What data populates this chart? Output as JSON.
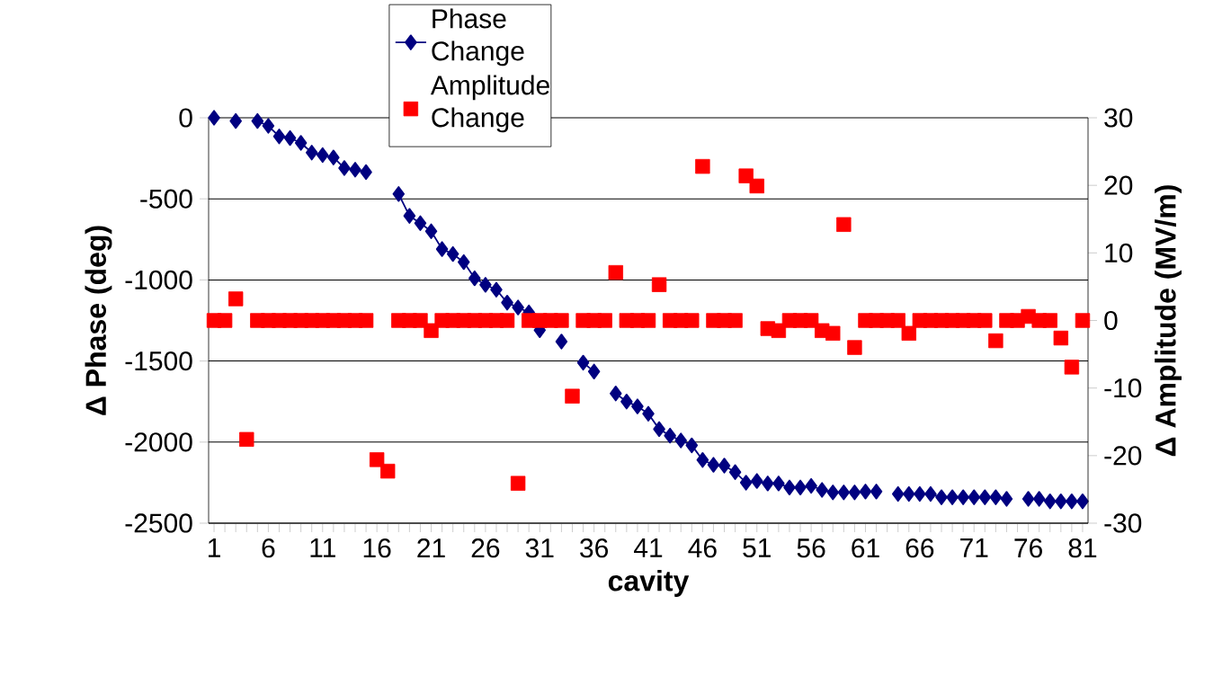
{
  "chart_data": {
    "type": "line",
    "xlabel": "cavity",
    "ylabel": "Δ Phase (deg)",
    "y2label": "Δ Amplitude (MV/m)",
    "categories": [
      "1",
      null,
      null,
      null,
      null,
      "6",
      null,
      null,
      null,
      null,
      "11",
      null,
      null,
      null,
      null,
      "16",
      null,
      null,
      null,
      null,
      "21",
      null,
      null,
      null,
      null,
      "26",
      null,
      null,
      null,
      null,
      "31",
      null,
      null,
      null,
      null,
      "36",
      null,
      null,
      null,
      null,
      "41",
      null,
      null,
      null,
      null,
      "46",
      null,
      null,
      null,
      null,
      "51",
      null,
      null,
      null,
      null,
      "56",
      null,
      null,
      null,
      null,
      "61",
      null,
      null,
      null,
      null,
      "66",
      null,
      null,
      null,
      null,
      "71",
      null,
      null,
      null,
      null,
      "76",
      null,
      null,
      null,
      null,
      "81"
    ],
    "ylim": [
      -2500,
      0
    ],
    "yticks": [
      -2500,
      -2000,
      -1500,
      -1000,
      -500,
      0
    ],
    "y2lim": [
      -30,
      30
    ],
    "y2ticks": [
      -30,
      -20,
      -10,
      0,
      10,
      20,
      30
    ],
    "grid": "y",
    "legend": "top",
    "series": [
      {
        "name": "Phase Change",
        "color": "#000080",
        "marker": "diamond",
        "line_style": "solid",
        "values": [
          0,
          null,
          -20,
          null,
          -20,
          -50,
          -115,
          -125,
          -155,
          -215,
          -230,
          -245,
          -310,
          -320,
          -335,
          null,
          null,
          -470,
          -605,
          -650,
          -700,
          -810,
          -840,
          -890,
          -990,
          -1030,
          -1060,
          -1140,
          -1170,
          -1200,
          -1310,
          null,
          -1380,
          null,
          -1510,
          -1565,
          null,
          -1700,
          -1750,
          -1780,
          -1825,
          -1920,
          -1960,
          -1990,
          -2020,
          -2110,
          -2140,
          -2145,
          -2185,
          -2250,
          -2240,
          -2255,
          -2255,
          -2280,
          -2280,
          -2270,
          -2295,
          -2310,
          -2310,
          -2310,
          -2305,
          -2305,
          null,
          -2320,
          -2320,
          -2320,
          -2320,
          -2340,
          -2340,
          -2340,
          -2340,
          -2340,
          -2340,
          -2350,
          null,
          -2350,
          -2350,
          -2365,
          -2365,
          -2365,
          -2365
        ]
      },
      {
        "name": "Amplitude Change",
        "type": "scatter",
        "color": "#ff0000",
        "marker": "square",
        "axis": "y2",
        "values": [
          0,
          0,
          3.2,
          -17.6,
          0,
          0,
          0,
          0,
          0,
          0,
          0,
          0,
          0,
          0,
          0,
          -20.6,
          -22.3,
          0,
          0,
          0,
          -1.5,
          0,
          0,
          0,
          0,
          0,
          0,
          0,
          -24.1,
          0,
          0,
          0,
          0,
          -11.2,
          0,
          0,
          0,
          7.1,
          0,
          0,
          0,
          5.3,
          0,
          0,
          0,
          22.8,
          0,
          0,
          0,
          21.4,
          19.9,
          -1.2,
          -1.5,
          0,
          0,
          0,
          -1.5,
          -1.9,
          14.2,
          -4.0,
          0,
          0,
          0,
          0,
          -1.9,
          0,
          0,
          0,
          0,
          0,
          0,
          0,
          -3.0,
          0,
          0,
          0.6,
          0,
          0,
          -2.6,
          -6.9,
          0
        ]
      }
    ]
  }
}
